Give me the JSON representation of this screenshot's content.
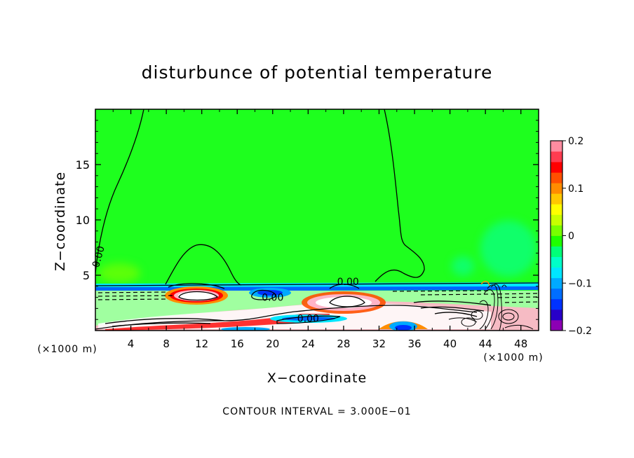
{
  "chart_data": {
    "type": "heatmap",
    "title": "disturbunce of potential temperature",
    "xlabel": "X−coordinate",
    "ylabel": "Z−coordinate",
    "x_unit_left": "(×1000 m)",
    "x_unit_right": "(×1000 m)",
    "footer": "CONTOUR INTERVAL = 3.000E−01",
    "xlim": [
      0,
      50
    ],
    "ylim": [
      0,
      20
    ],
    "x_ticks": [
      {
        "value": 4,
        "label": "4"
      },
      {
        "value": 8,
        "label": "8"
      },
      {
        "value": 12,
        "label": "12"
      },
      {
        "value": 16,
        "label": "16"
      },
      {
        "value": 20,
        "label": "20"
      },
      {
        "value": 24,
        "label": "24"
      },
      {
        "value": 28,
        "label": "28"
      },
      {
        "value": 32,
        "label": "32"
      },
      {
        "value": 36,
        "label": "36"
      },
      {
        "value": 40,
        "label": "40"
      },
      {
        "value": 44,
        "label": "44"
      },
      {
        "value": 48,
        "label": "48"
      }
    ],
    "y_ticks": [
      {
        "value": 5,
        "label": "5"
      },
      {
        "value": 10,
        "label": "10"
      },
      {
        "value": 15,
        "label": "15"
      }
    ],
    "contour_labels": [
      {
        "x": 0.7,
        "z": 6.6,
        "label": "0.00"
      },
      {
        "x": 28.5,
        "z": 4.1,
        "label": "0.00"
      },
      {
        "x": 20.0,
        "z": 2.7,
        "label": "0.00"
      },
      {
        "x": 24.0,
        "z": 0.8,
        "label": "0.00"
      }
    ],
    "colorbar": {
      "vmin": -0.2,
      "vmax": 0.2,
      "ticks": [
        {
          "value": 0.2,
          "label": "0.2"
        },
        {
          "value": 0.1,
          "label": "0.1"
        },
        {
          "value": 0,
          "label": "0"
        },
        {
          "value": -0.1,
          "label": "−0.1"
        },
        {
          "value": -0.2,
          "label": "−0.2"
        }
      ],
      "colors": [
        "#8c00b4",
        "#2800c8",
        "#0032ff",
        "#006eff",
        "#00aaff",
        "#00e6ff",
        "#00ffc8",
        "#00ff78",
        "#1eff00",
        "#78ff00",
        "#c8ff00",
        "#ffff00",
        "#ffc800",
        "#ff8c00",
        "#ff5000",
        "#ff0000",
        "#ff3c50",
        "#ff8ca0"
      ]
    },
    "colors": {
      "background_field": "#1eff1e",
      "near_zero_negative": "#00ff78",
      "cyan": "#00e6ff",
      "blue": "#0032ff",
      "orange": "#ff8c00",
      "red": "#ff0000",
      "pink": "#ffb4c8",
      "white": "#ffffff"
    }
  }
}
